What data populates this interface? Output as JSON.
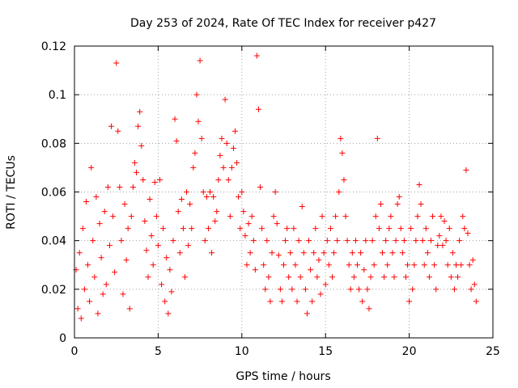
{
  "chart_data": {
    "type": "scatter",
    "title": "Day 253 of 2024, Rate Of TEC Index for receiver p427",
    "xlabel": "GPS time / hours",
    "ylabel": "ROTI / TECUs",
    "xlim": [
      0,
      25
    ],
    "ylim": [
      0,
      0.12
    ],
    "xticks": [
      0,
      5,
      10,
      15,
      20,
      25
    ],
    "yticks": [
      0,
      0.02,
      0.04,
      0.06,
      0.08,
      0.1,
      0.12
    ],
    "xtick_labels": [
      "0",
      "5",
      "10",
      "15",
      "20",
      "25"
    ],
    "ytick_labels": [
      "0",
      "0.02",
      "0.04",
      "0.06",
      "0.08",
      "0.1",
      "0.12"
    ],
    "grid": true,
    "marker": "+",
    "series": [
      {
        "name": "p427",
        "color": "#ff0000",
        "points": [
          [
            0.1,
            0.028
          ],
          [
            0.2,
            0.012
          ],
          [
            0.3,
            0.035
          ],
          [
            0.4,
            0.008
          ],
          [
            0.5,
            0.045
          ],
          [
            0.6,
            0.02
          ],
          [
            0.7,
            0.056
          ],
          [
            0.8,
            0.03
          ],
          [
            0.9,
            0.015
          ],
          [
            1.0,
            0.07
          ],
          [
            1.1,
            0.04
          ],
          [
            1.2,
            0.025
          ],
          [
            1.3,
            0.058
          ],
          [
            1.4,
            0.01
          ],
          [
            1.5,
            0.047
          ],
          [
            1.6,
            0.033
          ],
          [
            1.7,
            0.018
          ],
          [
            1.8,
            0.052
          ],
          [
            1.9,
            0.022
          ],
          [
            2.0,
            0.062
          ],
          [
            2.1,
            0.038
          ],
          [
            2.2,
            0.087
          ],
          [
            2.3,
            0.05
          ],
          [
            2.4,
            0.027
          ],
          [
            2.5,
            0.113
          ],
          [
            2.6,
            0.085
          ],
          [
            2.7,
            0.062
          ],
          [
            2.8,
            0.04
          ],
          [
            2.9,
            0.018
          ],
          [
            3.0,
            0.055
          ],
          [
            3.1,
            0.032
          ],
          [
            3.2,
            0.045
          ],
          [
            3.3,
            0.012
          ],
          [
            3.4,
            0.05
          ],
          [
            3.5,
            0.062
          ],
          [
            3.6,
            0.072
          ],
          [
            3.7,
            0.068
          ],
          [
            3.8,
            0.087
          ],
          [
            3.9,
            0.093
          ],
          [
            4.0,
            0.079
          ],
          [
            4.1,
            0.065
          ],
          [
            4.2,
            0.048
          ],
          [
            4.3,
            0.036
          ],
          [
            4.4,
            0.025
          ],
          [
            4.5,
            0.057
          ],
          [
            4.6,
            0.042
          ],
          [
            4.7,
            0.03
          ],
          [
            4.8,
            0.064
          ],
          [
            4.9,
            0.05
          ],
          [
            5.0,
            0.038
          ],
          [
            5.1,
            0.065
          ],
          [
            5.2,
            0.022
          ],
          [
            5.3,
            0.045
          ],
          [
            5.4,
            0.015
          ],
          [
            5.5,
            0.033
          ],
          [
            5.6,
            0.01
          ],
          [
            5.7,
            0.028
          ],
          [
            5.8,
            0.019
          ],
          [
            5.9,
            0.04
          ],
          [
            6.0,
            0.09
          ],
          [
            6.1,
            0.081
          ],
          [
            6.2,
            0.052
          ],
          [
            6.3,
            0.035
          ],
          [
            6.4,
            0.057
          ],
          [
            6.5,
            0.045
          ],
          [
            6.6,
            0.025
          ],
          [
            6.7,
            0.06
          ],
          [
            6.8,
            0.038
          ],
          [
            6.9,
            0.055
          ],
          [
            7.0,
            0.045
          ],
          [
            7.1,
            0.07
          ],
          [
            7.2,
            0.076
          ],
          [
            7.3,
            0.1
          ],
          [
            7.4,
            0.089
          ],
          [
            7.5,
            0.114
          ],
          [
            7.6,
            0.082
          ],
          [
            7.7,
            0.06
          ],
          [
            7.8,
            0.04
          ],
          [
            7.9,
            0.058
          ],
          [
            8.0,
            0.045
          ],
          [
            8.1,
            0.06
          ],
          [
            8.2,
            0.035
          ],
          [
            8.3,
            0.058
          ],
          [
            8.4,
            0.048
          ],
          [
            8.5,
            0.052
          ],
          [
            8.6,
            0.065
          ],
          [
            8.7,
            0.075
          ],
          [
            8.8,
            0.082
          ],
          [
            8.9,
            0.07
          ],
          [
            9.0,
            0.098
          ],
          [
            9.1,
            0.08
          ],
          [
            9.2,
            0.065
          ],
          [
            9.3,
            0.05
          ],
          [
            9.4,
            0.07
          ],
          [
            9.5,
            0.078
          ],
          [
            9.6,
            0.085
          ],
          [
            9.7,
            0.072
          ],
          [
            9.8,
            0.058
          ],
          [
            9.9,
            0.045
          ],
          [
            10.0,
            0.06
          ],
          [
            10.1,
            0.052
          ],
          [
            10.2,
            0.042
          ],
          [
            10.3,
            0.03
          ],
          [
            10.4,
            0.047
          ],
          [
            10.5,
            0.035
          ],
          [
            10.6,
            0.05
          ],
          [
            10.7,
            0.04
          ],
          [
            10.8,
            0.028
          ],
          [
            10.9,
            0.116
          ],
          [
            11.0,
            0.094
          ],
          [
            11.1,
            0.062
          ],
          [
            11.2,
            0.045
          ],
          [
            11.3,
            0.03
          ],
          [
            11.4,
            0.02
          ],
          [
            11.5,
            0.04
          ],
          [
            11.6,
            0.025
          ],
          [
            11.7,
            0.015
          ],
          [
            11.8,
            0.035
          ],
          [
            11.9,
            0.05
          ],
          [
            12.0,
            0.06
          ],
          [
            12.1,
            0.047
          ],
          [
            12.2,
            0.034
          ],
          [
            12.3,
            0.02
          ],
          [
            12.4,
            0.015
          ],
          [
            12.5,
            0.03
          ],
          [
            12.6,
            0.04
          ],
          [
            12.7,
            0.045
          ],
          [
            12.8,
            0.025
          ],
          [
            12.9,
            0.035
          ],
          [
            13.0,
            0.02
          ],
          [
            13.1,
            0.045
          ],
          [
            13.2,
            0.03
          ],
          [
            13.3,
            0.015
          ],
          [
            13.4,
            0.04
          ],
          [
            13.5,
            0.025
          ],
          [
            13.6,
            0.054
          ],
          [
            13.7,
            0.035
          ],
          [
            13.8,
            0.02
          ],
          [
            13.9,
            0.01
          ],
          [
            14.0,
            0.04
          ],
          [
            14.1,
            0.028
          ],
          [
            14.2,
            0.015
          ],
          [
            14.3,
            0.035
          ],
          [
            14.4,
            0.045
          ],
          [
            14.5,
            0.025
          ],
          [
            14.6,
            0.032
          ],
          [
            14.7,
            0.018
          ],
          [
            14.8,
            0.05
          ],
          [
            14.9,
            0.035
          ],
          [
            15.0,
            0.022
          ],
          [
            15.1,
            0.04
          ],
          [
            15.2,
            0.03
          ],
          [
            15.3,
            0.045
          ],
          [
            15.4,
            0.025
          ],
          [
            15.5,
            0.035
          ],
          [
            15.6,
            0.05
          ],
          [
            15.7,
            0.04
          ],
          [
            15.8,
            0.06
          ],
          [
            15.9,
            0.082
          ],
          [
            16.0,
            0.076
          ],
          [
            16.1,
            0.065
          ],
          [
            16.2,
            0.05
          ],
          [
            16.3,
            0.04
          ],
          [
            16.4,
            0.03
          ],
          [
            16.5,
            0.02
          ],
          [
            16.6,
            0.035
          ],
          [
            16.7,
            0.025
          ],
          [
            16.8,
            0.04
          ],
          [
            16.9,
            0.03
          ],
          [
            17.0,
            0.02
          ],
          [
            17.1,
            0.035
          ],
          [
            17.2,
            0.015
          ],
          [
            17.3,
            0.028
          ],
          [
            17.4,
            0.04
          ],
          [
            17.5,
            0.02
          ],
          [
            17.6,
            0.012
          ],
          [
            17.7,
            0.025
          ],
          [
            17.8,
            0.04
          ],
          [
            17.9,
            0.03
          ],
          [
            18.0,
            0.05
          ],
          [
            18.1,
            0.082
          ],
          [
            18.2,
            0.045
          ],
          [
            18.3,
            0.055
          ],
          [
            18.4,
            0.035
          ],
          [
            18.5,
            0.025
          ],
          [
            18.6,
            0.04
          ],
          [
            18.7,
            0.03
          ],
          [
            18.8,
            0.045
          ],
          [
            18.9,
            0.05
          ],
          [
            19.0,
            0.035
          ],
          [
            19.1,
            0.025
          ],
          [
            19.2,
            0.04
          ],
          [
            19.3,
            0.055
          ],
          [
            19.4,
            0.058
          ],
          [
            19.5,
            0.045
          ],
          [
            19.6,
            0.035
          ],
          [
            19.7,
            0.04
          ],
          [
            19.8,
            0.025
          ],
          [
            19.9,
            0.03
          ],
          [
            20.0,
            0.015
          ],
          [
            20.1,
            0.045
          ],
          [
            20.2,
            0.02
          ],
          [
            20.3,
            0.03
          ],
          [
            20.4,
            0.04
          ],
          [
            20.5,
            0.05
          ],
          [
            20.6,
            0.063
          ],
          [
            20.7,
            0.055
          ],
          [
            20.8,
            0.04
          ],
          [
            20.9,
            0.03
          ],
          [
            21.0,
            0.045
          ],
          [
            21.1,
            0.035
          ],
          [
            21.2,
            0.025
          ],
          [
            21.3,
            0.04
          ],
          [
            21.4,
            0.05
          ],
          [
            21.5,
            0.03
          ],
          [
            21.6,
            0.02
          ],
          [
            21.7,
            0.038
          ],
          [
            21.8,
            0.042
          ],
          [
            21.9,
            0.05
          ],
          [
            22.0,
            0.038
          ],
          [
            22.1,
            0.048
          ],
          [
            22.2,
            0.04
          ],
          [
            22.3,
            0.03
          ],
          [
            22.4,
            0.045
          ],
          [
            22.5,
            0.025
          ],
          [
            22.6,
            0.035
          ],
          [
            22.7,
            0.02
          ],
          [
            22.8,
            0.03
          ],
          [
            22.9,
            0.025
          ],
          [
            23.0,
            0.04
          ],
          [
            23.1,
            0.03
          ],
          [
            23.2,
            0.05
          ],
          [
            23.3,
            0.045
          ],
          [
            23.4,
            0.069
          ],
          [
            23.5,
            0.043
          ],
          [
            23.6,
            0.03
          ],
          [
            23.7,
            0.02
          ],
          [
            23.8,
            0.032
          ],
          [
            23.9,
            0.022
          ],
          [
            24.0,
            0.015
          ]
        ]
      }
    ]
  }
}
